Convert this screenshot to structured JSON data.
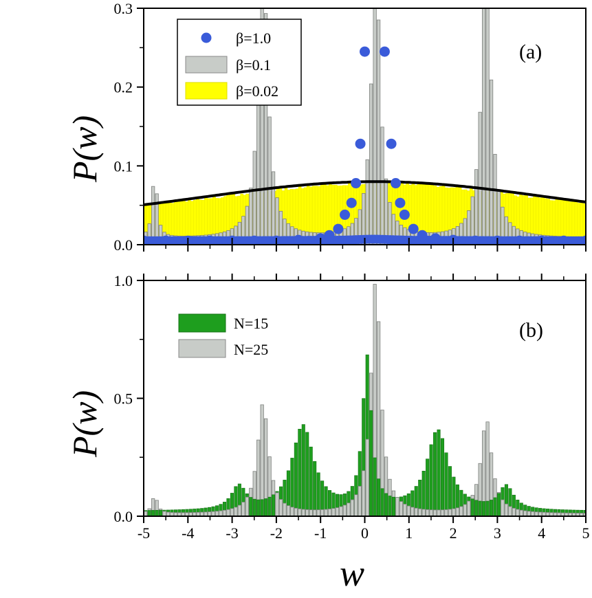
{
  "chart_data": [
    {
      "panel": "(a)",
      "type": "bar",
      "xlabel": "w",
      "ylabel": "P(w)",
      "xlim": [
        -5,
        5
      ],
      "ylim": [
        0,
        0.3
      ],
      "yticks": [
        0.0,
        0.1,
        0.2,
        0.3
      ],
      "ytick_labels": [
        "0.0",
        "0.1",
        "0.2",
        "0.3"
      ],
      "legend": [
        {
          "label": "β=1.0",
          "kind": "marker",
          "color": "#3a5bd9"
        },
        {
          "label": "β=0.1",
          "kind": "bar",
          "color": "#c8ccc8"
        },
        {
          "label": "β=0.02",
          "kind": "bar",
          "color": "#ffff00"
        }
      ],
      "series": [
        {
          "name": "β=0.02",
          "kind": "histogram",
          "color": "#ffff00",
          "description": "broad nearly-flat distribution ~0.05-0.075 over [-5,5]",
          "bin_centers_sample": [
            -5,
            -4,
            -3,
            -2,
            -1,
            0,
            1,
            2,
            3,
            4,
            5
          ],
          "values_sample": [
            0.045,
            0.055,
            0.063,
            0.07,
            0.075,
            0.077,
            0.075,
            0.07,
            0.063,
            0.055,
            0.048
          ]
        },
        {
          "name": "β=0.1",
          "kind": "histogram",
          "color": "#c8ccc8",
          "peaks": [
            {
              "center": -4.75,
              "height": 0.09,
              "width": 0.06
            },
            {
              "center": -2.3,
              "height": 0.35,
              "width": 0.13
            },
            {
              "center": 0.25,
              "height": 0.35,
              "width": 0.12
            },
            {
              "center": 2.75,
              "height": 0.35,
              "width": 0.13
            }
          ],
          "baseline": 0.008
        },
        {
          "name": "β=1.0",
          "kind": "scatter",
          "color": "#3a5bd9",
          "points": [
            [
              -5.0,
              0.005
            ],
            [
              -4.5,
              0.005
            ],
            [
              -4.0,
              0.005
            ],
            [
              -3.5,
              0.005
            ],
            [
              -3.0,
              0.005
            ],
            [
              -2.5,
              0.005
            ],
            [
              -2.0,
              0.005
            ],
            [
              -1.5,
              0.006
            ],
            [
              -1.0,
              0.008
            ],
            [
              -0.8,
              0.012
            ],
            [
              -0.6,
              0.02
            ],
            [
              -0.45,
              0.038
            ],
            [
              -0.3,
              0.053
            ],
            [
              -0.2,
              0.078
            ],
            [
              -0.1,
              0.128
            ],
            [
              0.0,
              0.245
            ],
            [
              0.45,
              0.245
            ],
            [
              0.6,
              0.128
            ],
            [
              0.7,
              0.078
            ],
            [
              0.8,
              0.053
            ],
            [
              0.9,
              0.038
            ],
            [
              1.1,
              0.02
            ],
            [
              1.3,
              0.012
            ],
            [
              1.6,
              0.008
            ],
            [
              2.0,
              0.006
            ],
            [
              2.5,
              0.005
            ],
            [
              3.0,
              0.005
            ],
            [
              3.5,
              0.005
            ],
            [
              4.0,
              0.005
            ],
            [
              4.5,
              0.005
            ],
            [
              5.0,
              0.005
            ]
          ]
        },
        {
          "name": "fit",
          "kind": "line",
          "color": "#000000",
          "description": "Gaussian-like curve peak 0.08 at w≈0.25, ~0.047 at w=-5 and ~0.052 at w=5"
        }
      ]
    },
    {
      "panel": "(b)",
      "type": "bar",
      "xlabel": "w",
      "ylabel": "P(w)",
      "xlim": [
        -5,
        5
      ],
      "ylim": [
        0,
        1.0
      ],
      "xticks": [
        -5,
        -4,
        -3,
        -2,
        -1,
        0,
        1,
        2,
        3,
        4,
        5
      ],
      "xtick_labels": [
        "-5",
        "-4",
        "-3",
        "-2",
        "-1",
        "0",
        "1",
        "2",
        "3",
        "4",
        "5"
      ],
      "yticks": [
        0.0,
        0.5,
        1.0
      ],
      "ytick_labels": [
        "0.0",
        "0.5",
        "1.0"
      ],
      "legend": [
        {
          "label": "N=15",
          "kind": "bar",
          "color": "#1e9e1e"
        },
        {
          "label": "N=25",
          "kind": "bar",
          "color": "#c8ccc8"
        }
      ],
      "series": [
        {
          "name": "N=15",
          "kind": "histogram",
          "color": "#1e9e1e",
          "peaks": [
            {
              "center": -2.85,
              "height": 0.1,
              "width": 0.2
            },
            {
              "center": -1.4,
              "height": 0.36,
              "width": 0.3
            },
            {
              "center": 0.05,
              "height": 0.64,
              "width": 0.12
            },
            {
              "center": 1.65,
              "height": 0.34,
              "width": 0.3
            },
            {
              "center": 3.2,
              "height": 0.1,
              "width": 0.2
            }
          ],
          "baseline": 0.02
        },
        {
          "name": "N=25",
          "kind": "histogram",
          "color": "#c8ccc8",
          "peaks": [
            {
              "center": -4.75,
              "height": 0.08,
              "width": 0.07
            },
            {
              "center": -2.3,
              "height": 0.47,
              "width": 0.15
            },
            {
              "center": 0.25,
              "height": 1.0,
              "width": 0.13
            },
            {
              "center": 2.75,
              "height": 0.4,
              "width": 0.15
            }
          ],
          "baseline": 0.01
        }
      ]
    }
  ],
  "labels": {
    "panel_a": "(a)",
    "panel_b": "(b)",
    "y_axis_a": "P(w)",
    "y_axis_b": "P(w)",
    "x_axis": "w"
  }
}
